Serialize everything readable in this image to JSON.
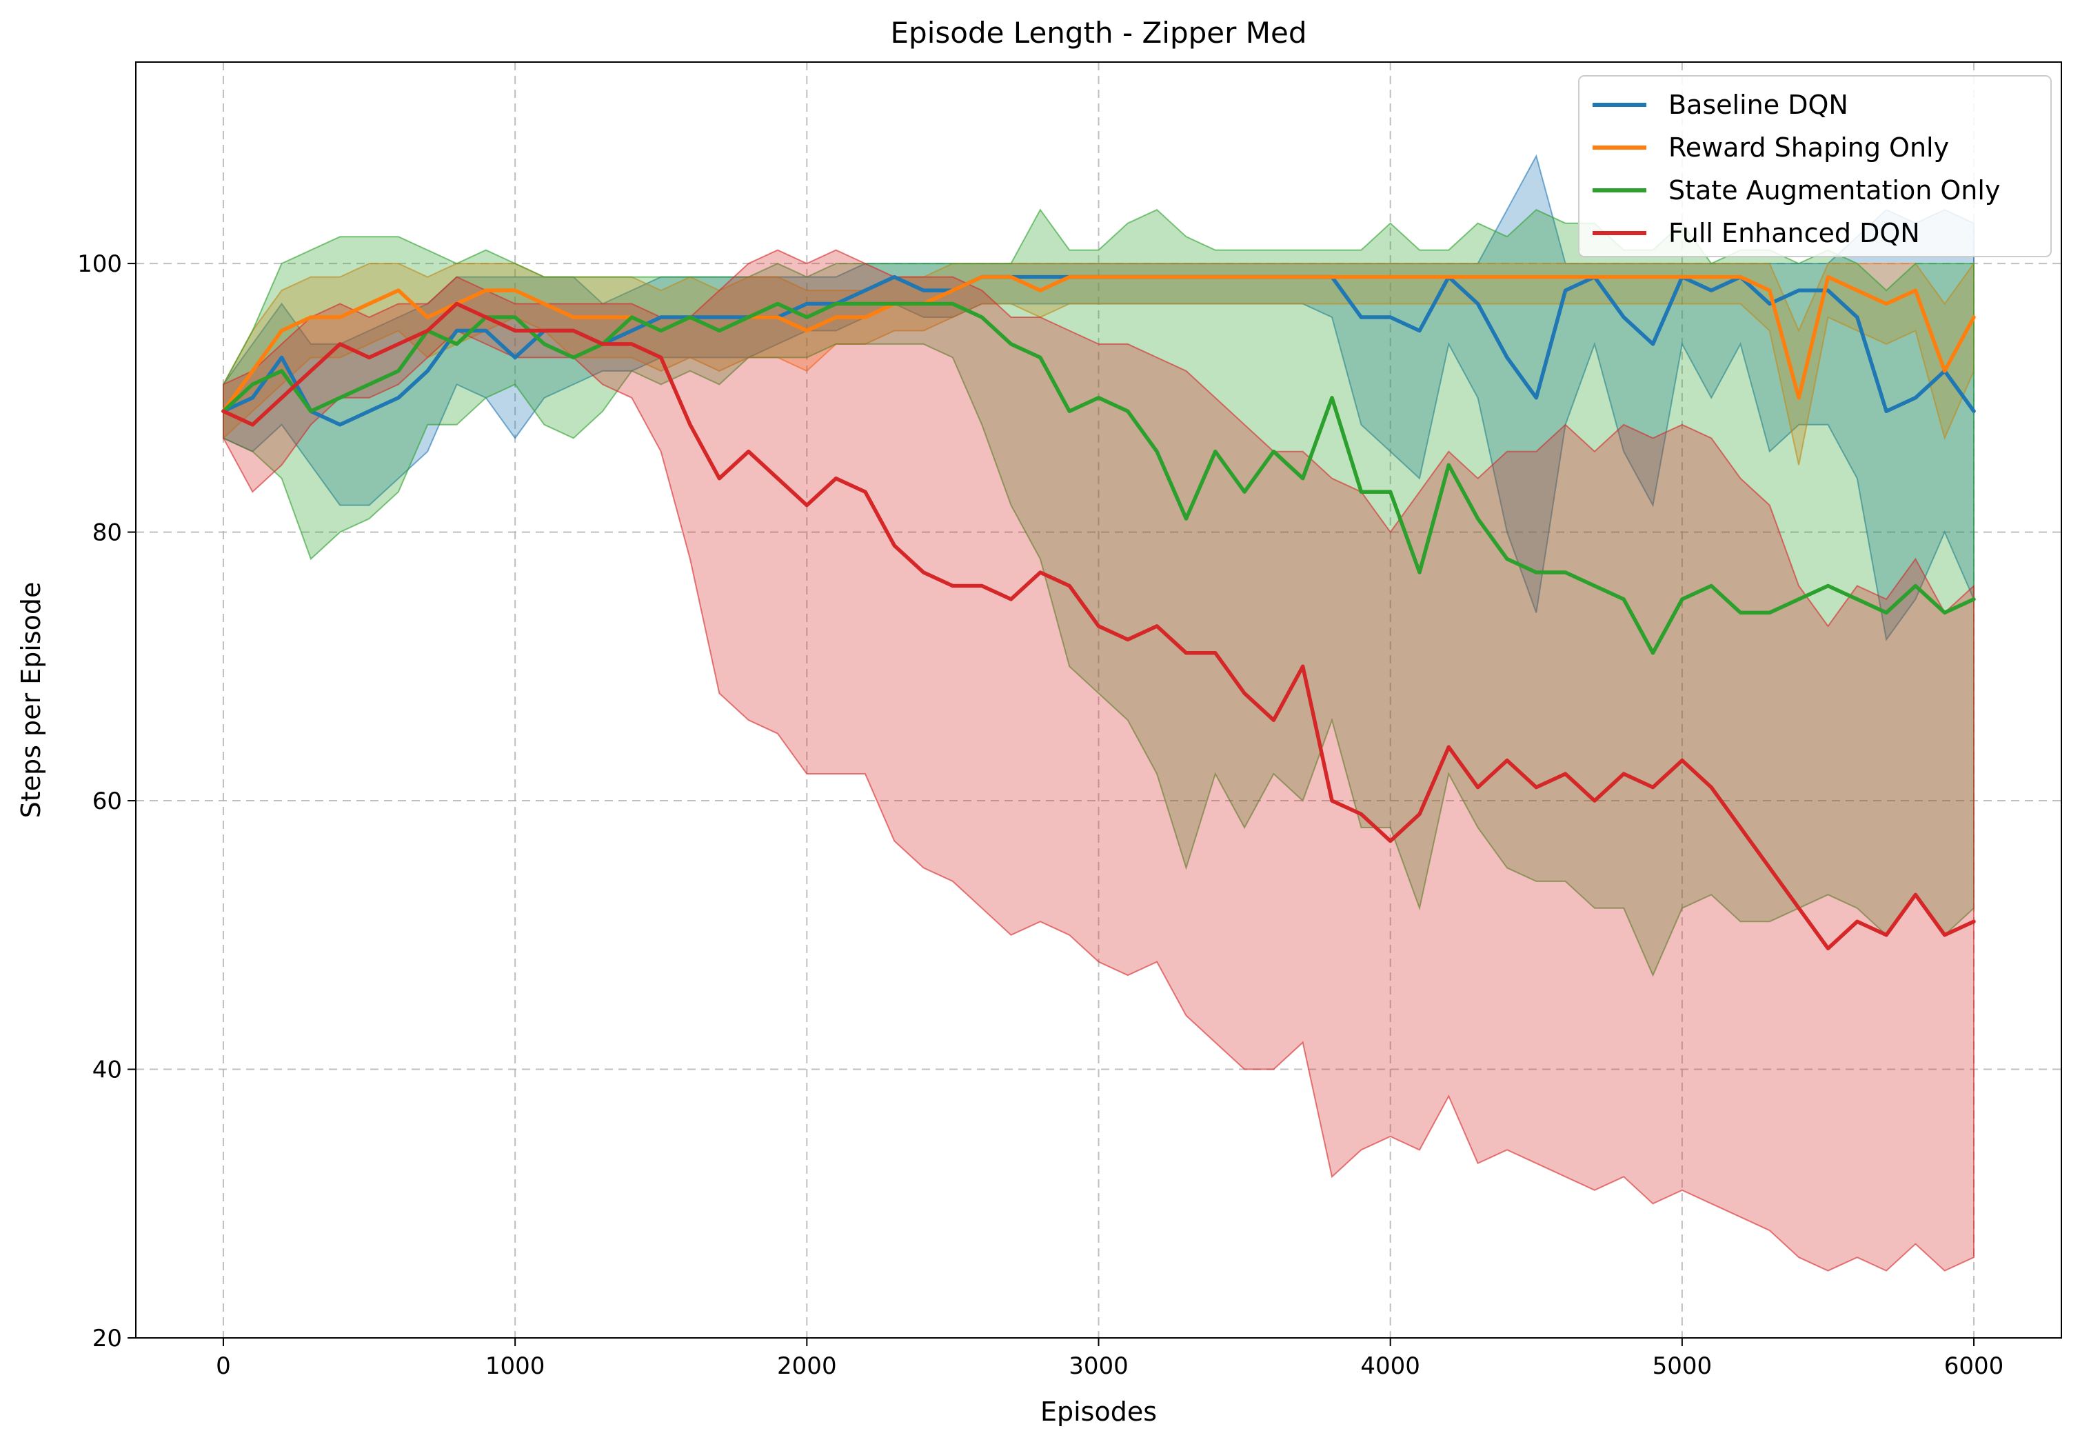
{
  "chart_data": {
    "type": "line",
    "title": "Episode Length - Zipper Med",
    "xlabel": "Episodes",
    "ylabel": "Steps per Episode",
    "xlim": [
      -300,
      6300
    ],
    "ylim": [
      20,
      115
    ],
    "xticks": [
      0,
      1000,
      2000,
      3000,
      4000,
      5000,
      6000
    ],
    "yticks": [
      20,
      40,
      60,
      80,
      100
    ],
    "grid": true,
    "legend_position": "top-right",
    "x": [
      0,
      100,
      200,
      300,
      400,
      500,
      600,
      700,
      800,
      900,
      1000,
      1100,
      1200,
      1300,
      1400,
      1500,
      1600,
      1700,
      1800,
      1900,
      2000,
      2100,
      2200,
      2300,
      2400,
      2500,
      2600,
      2700,
      2800,
      2900,
      3000,
      3100,
      3200,
      3300,
      3400,
      3500,
      3600,
      3700,
      3800,
      3900,
      4000,
      4100,
      4200,
      4300,
      4400,
      4500,
      4600,
      4700,
      4800,
      4900,
      5000,
      5100,
      5200,
      5300,
      5400,
      5500,
      5600,
      5700,
      5800,
      5900,
      6000
    ],
    "series": [
      {
        "name": "Baseline DQN",
        "color": "#1f77b4",
        "values": [
          89,
          90,
          93,
          89,
          88,
          89,
          90,
          92,
          95,
          95,
          93,
          95,
          95,
          94,
          95,
          96,
          96,
          96,
          96,
          96,
          97,
          97,
          98,
          99,
          98,
          98,
          99,
          99,
          99,
          99,
          99,
          99,
          99,
          99,
          99,
          99,
          99,
          99,
          99,
          96,
          96,
          95,
          99,
          97,
          93,
          90,
          98,
          99,
          96,
          94,
          99,
          98,
          99,
          97,
          98,
          98,
          96,
          89,
          90,
          92,
          89
        ],
        "lower": [
          87,
          86,
          88,
          85,
          82,
          82,
          84,
          86,
          91,
          90,
          87,
          90,
          91,
          92,
          92,
          93,
          93,
          93,
          93,
          94,
          95,
          95,
          96,
          97,
          96,
          96,
          97,
          97,
          97,
          97,
          97,
          97,
          97,
          97,
          97,
          97,
          97,
          97,
          96,
          88,
          86,
          84,
          94,
          90,
          80,
          74,
          88,
          94,
          86,
          82,
          94,
          90,
          94,
          86,
          88,
          88,
          84,
          72,
          75,
          80,
          75
        ],
        "upper": [
          91,
          94,
          97,
          94,
          94,
          95,
          96,
          97,
          99,
          99,
          99,
          99,
          99,
          97,
          98,
          99,
          99,
          99,
          99,
          99,
          99,
          99,
          100,
          100,
          100,
          100,
          100,
          100,
          100,
          100,
          100,
          100,
          100,
          100,
          100,
          100,
          100,
          100,
          100,
          100,
          100,
          100,
          100,
          100,
          104,
          108,
          100,
          100,
          100,
          100,
          100,
          100,
          100,
          100,
          100,
          100,
          102,
          104,
          103,
          104,
          103
        ]
      },
      {
        "name": "Reward Shaping Only",
        "color": "#ff7f0e",
        "values": [
          89,
          92,
          95,
          96,
          96,
          97,
          98,
          96,
          97,
          98,
          98,
          97,
          96,
          96,
          96,
          95,
          96,
          95,
          96,
          96,
          95,
          96,
          96,
          97,
          97,
          98,
          99,
          99,
          98,
          99,
          99,
          99,
          99,
          99,
          99,
          99,
          99,
          99,
          99,
          99,
          99,
          99,
          99,
          99,
          99,
          99,
          99,
          99,
          99,
          99,
          99,
          99,
          99,
          98,
          90,
          99,
          98,
          97,
          98,
          92,
          96
        ],
        "lower": [
          87,
          89,
          91,
          93,
          93,
          94,
          95,
          93,
          94,
          95,
          96,
          95,
          93,
          93,
          93,
          92,
          93,
          92,
          93,
          93,
          92,
          94,
          94,
          95,
          95,
          96,
          97,
          97,
          96,
          97,
          97,
          97,
          97,
          97,
          97,
          97,
          97,
          97,
          97,
          97,
          97,
          97,
          97,
          97,
          97,
          97,
          97,
          97,
          97,
          97,
          97,
          97,
          97,
          95,
          85,
          96,
          95,
          94,
          95,
          87,
          92
        ],
        "upper": [
          91,
          95,
          98,
          99,
          99,
          100,
          100,
          99,
          100,
          100,
          100,
          99,
          99,
          99,
          99,
          98,
          99,
          98,
          99,
          99,
          98,
          98,
          98,
          99,
          99,
          100,
          100,
          100,
          100,
          100,
          100,
          100,
          100,
          100,
          100,
          100,
          100,
          100,
          100,
          100,
          100,
          100,
          100,
          100,
          100,
          100,
          100,
          100,
          100,
          100,
          100,
          100,
          100,
          100,
          95,
          100,
          100,
          100,
          100,
          97,
          100
        ]
      },
      {
        "name": "State Augmentation Only",
        "color": "#2ca02c",
        "values": [
          89,
          91,
          92,
          89,
          90,
          91,
          92,
          95,
          94,
          96,
          96,
          94,
          93,
          94,
          96,
          95,
          96,
          95,
          96,
          97,
          96,
          97,
          97,
          97,
          97,
          97,
          96,
          94,
          93,
          89,
          90,
          89,
          86,
          81,
          86,
          83,
          86,
          84,
          90,
          83,
          83,
          77,
          85,
          81,
          78,
          77,
          77,
          76,
          75,
          71,
          75,
          76,
          74,
          74,
          75,
          76,
          75,
          74,
          76,
          74,
          75
        ],
        "lower": [
          87,
          86,
          84,
          78,
          80,
          81,
          83,
          88,
          88,
          90,
          91,
          88,
          87,
          89,
          92,
          91,
          92,
          91,
          93,
          93,
          93,
          94,
          94,
          94,
          94,
          93,
          88,
          82,
          78,
          70,
          68,
          66,
          62,
          55,
          62,
          58,
          62,
          60,
          66,
          58,
          58,
          52,
          62,
          58,
          55,
          54,
          54,
          52,
          52,
          47,
          52,
          53,
          51,
          51,
          52,
          53,
          52,
          50,
          53,
          50,
          52
        ],
        "upper": [
          91,
          95,
          100,
          101,
          102,
          102,
          102,
          101,
          100,
          101,
          100,
          99,
          99,
          99,
          99,
          99,
          99,
          99,
          99,
          100,
          99,
          100,
          100,
          100,
          100,
          100,
          100,
          100,
          104,
          101,
          101,
          103,
          104,
          102,
          101,
          101,
          101,
          101,
          101,
          101,
          103,
          101,
          101,
          103,
          102,
          104,
          103,
          103,
          101,
          101,
          103,
          100,
          101,
          101,
          100,
          101,
          100,
          98,
          100,
          100,
          100
        ]
      },
      {
        "name": "Full Enhanced DQN",
        "color": "#d62728",
        "values": [
          89,
          88,
          90,
          92,
          94,
          93,
          94,
          95,
          97,
          96,
          95,
          95,
          95,
          94,
          94,
          93,
          88,
          84,
          86,
          84,
          82,
          84,
          83,
          79,
          77,
          76,
          76,
          75,
          77,
          76,
          73,
          72,
          73,
          71,
          71,
          68,
          66,
          70,
          60,
          59,
          57,
          59,
          64,
          61,
          63,
          61,
          62,
          60,
          62,
          61,
          63,
          61,
          58,
          55,
          52,
          49,
          51,
          50,
          53,
          50,
          51
        ],
        "lower": [
          87,
          83,
          85,
          88,
          90,
          90,
          91,
          93,
          95,
          94,
          93,
          93,
          93,
          91,
          90,
          86,
          78,
          68,
          66,
          65,
          62,
          62,
          62,
          57,
          55,
          54,
          52,
          50,
          51,
          50,
          48,
          47,
          48,
          44,
          42,
          40,
          40,
          42,
          32,
          34,
          35,
          34,
          38,
          33,
          34,
          33,
          32,
          31,
          32,
          30,
          31,
          30,
          29,
          28,
          26,
          25,
          26,
          25,
          27,
          25,
          26
        ],
        "upper": [
          91,
          92,
          94,
          96,
          97,
          96,
          97,
          97,
          99,
          98,
          97,
          97,
          97,
          97,
          97,
          96,
          96,
          98,
          100,
          101,
          100,
          101,
          100,
          99,
          99,
          99,
          98,
          96,
          96,
          95,
          94,
          94,
          93,
          92,
          90,
          88,
          86,
          86,
          84,
          83,
          80,
          83,
          86,
          84,
          86,
          86,
          88,
          86,
          88,
          87,
          88,
          87,
          84,
          82,
          76,
          73,
          76,
          75,
          78,
          74,
          76
        ]
      }
    ]
  }
}
